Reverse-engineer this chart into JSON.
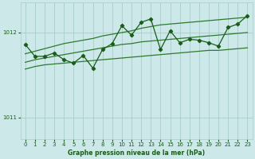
{
  "title": "Graphe pression niveau de la mer (hPa)",
  "bg_color": "#cce8e8",
  "grid_color": "#aacccc",
  "line_color": "#1a5c1a",
  "line_color_light": "#2d7a2d",
  "xlim": [
    -0.5,
    23.5
  ],
  "ylim": [
    1010.75,
    1012.35
  ],
  "yticks": [
    1011,
    1012
  ],
  "xticks": [
    0,
    1,
    2,
    3,
    4,
    5,
    6,
    7,
    8,
    9,
    10,
    11,
    12,
    13,
    14,
    15,
    16,
    17,
    18,
    19,
    20,
    21,
    22,
    23
  ],
  "upper_band": [
    1011.75,
    1011.78,
    1011.81,
    1011.84,
    1011.87,
    1011.89,
    1011.91,
    1011.93,
    1011.96,
    1011.98,
    1012.0,
    1012.02,
    1012.05,
    1012.07,
    1012.09,
    1012.1,
    1012.11,
    1012.12,
    1012.13,
    1012.14,
    1012.15,
    1012.16,
    1012.17,
    1012.18
  ],
  "middle_band": [
    1011.65,
    1011.68,
    1011.7,
    1011.72,
    1011.74,
    1011.76,
    1011.78,
    1011.8,
    1011.82,
    1011.84,
    1011.86,
    1011.87,
    1011.89,
    1011.9,
    1011.91,
    1011.92,
    1011.93,
    1011.94,
    1011.95,
    1011.96,
    1011.97,
    1011.98,
    1011.99,
    1012.0
  ],
  "lower_band": [
    1011.57,
    1011.6,
    1011.62,
    1011.63,
    1011.64,
    1011.65,
    1011.66,
    1011.67,
    1011.68,
    1011.69,
    1011.7,
    1011.71,
    1011.72,
    1011.73,
    1011.74,
    1011.75,
    1011.76,
    1011.77,
    1011.78,
    1011.79,
    1011.79,
    1011.8,
    1011.81,
    1011.82
  ],
  "data_line": [
    1011.86,
    1011.72,
    1011.72,
    1011.76,
    1011.68,
    1011.64,
    1011.73,
    1011.58,
    1011.8,
    1011.87,
    1012.08,
    1011.97,
    1012.12,
    1012.16,
    1011.8,
    1012.02,
    1011.88,
    1011.92,
    1011.91,
    1011.88,
    1011.84,
    1012.06,
    1012.1,
    1012.2
  ]
}
